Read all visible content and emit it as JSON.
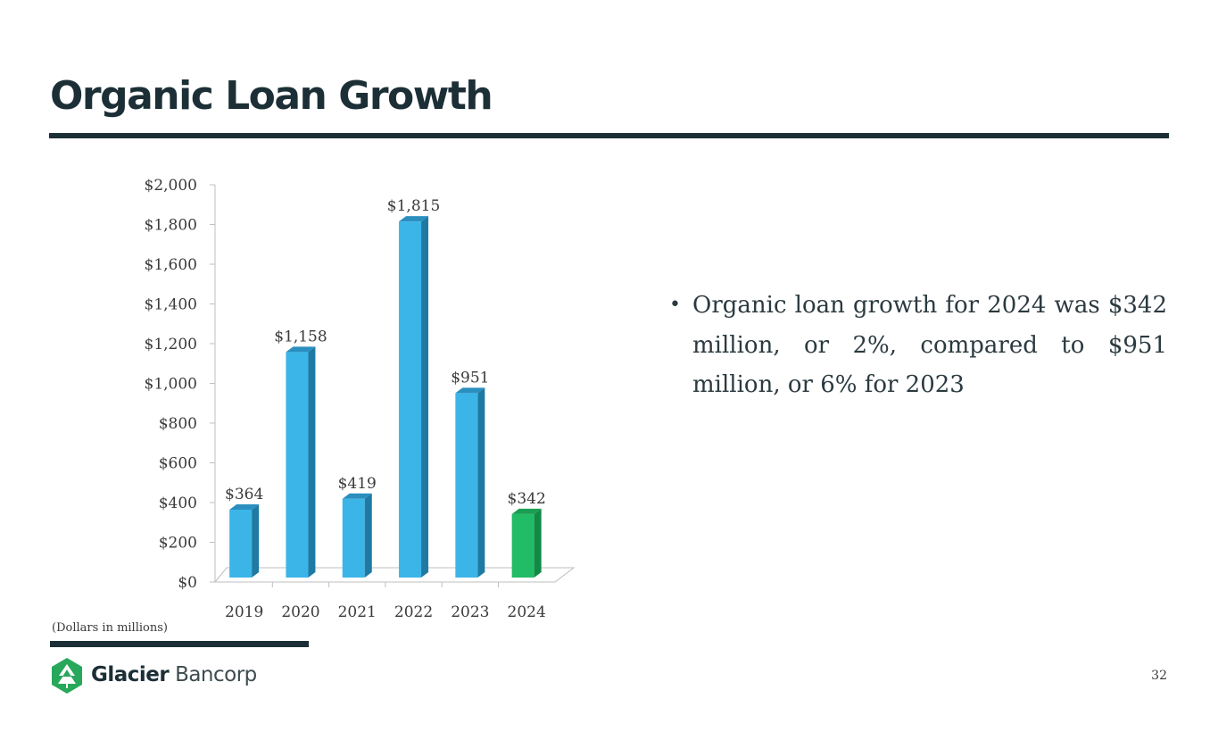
{
  "slide": {
    "title": "Organic Loan Growth",
    "bullet": "Organic loan growth for 2024 was $342 million, or 2%, compared to $951 million, or 6% for 2023",
    "footnote": "(Dollars in millions)",
    "page_number": "32",
    "logo": {
      "name_bold": "Glacier",
      "name_light": "Bancorp",
      "icon": "glacier-logo-icon"
    }
  },
  "colors": {
    "title": "#1c2f36",
    "bar": "#3bb5e8",
    "bar_side": "#1e7aa3",
    "bar_top": "#2a8fbf",
    "highlight_bar": "#22bb66",
    "highlight_side": "#128a45",
    "highlight_top": "#1a9e52",
    "logo_green": "#27a85a"
  },
  "chart_data": {
    "type": "bar",
    "categories": [
      "2019",
      "2020",
      "2021",
      "2022",
      "2023",
      "2024"
    ],
    "values": [
      364,
      1158,
      419,
      1815,
      951,
      342
    ],
    "data_labels": [
      "$364",
      "$1,158",
      "$419",
      "$1,815",
      "$951",
      "$342"
    ],
    "highlight_index": 5,
    "ylim": [
      0,
      2000
    ],
    "yticks": [
      0,
      200,
      400,
      600,
      800,
      1000,
      1200,
      1400,
      1600,
      1800,
      2000
    ],
    "ytick_labels": [
      "$0",
      "$200",
      "$400",
      "$600",
      "$800",
      "$1,000",
      "$1,200",
      "$1,400",
      "$1,600",
      "$1,800",
      "$2,000"
    ],
    "grid": false,
    "style": "3d"
  }
}
